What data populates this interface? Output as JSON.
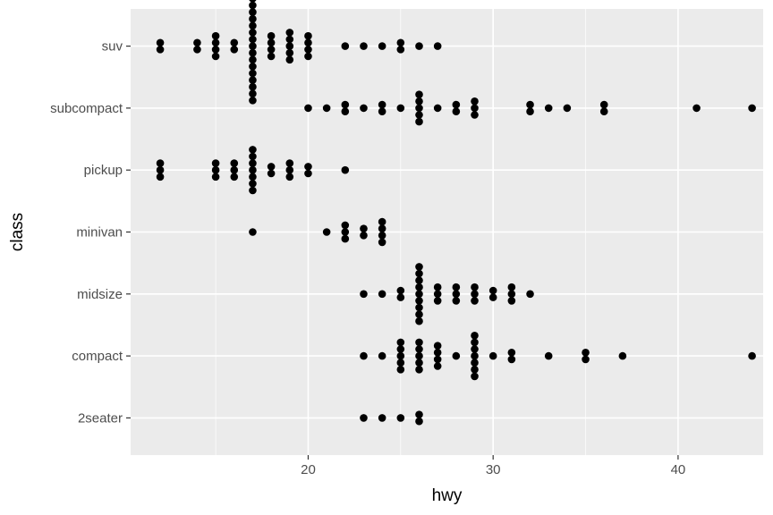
{
  "chart_data": {
    "type": "scatter",
    "title": "",
    "xlabel": "hwy",
    "ylabel": "class",
    "xlim": [
      10.4,
      44.6
    ],
    "xticks": [
      20,
      30,
      40
    ],
    "x_tick_labels": [
      "20",
      "30",
      "40"
    ],
    "categories": [
      "2seater",
      "compact",
      "midsize",
      "minivan",
      "pickup",
      "subcompact",
      "suv"
    ],
    "grid": true,
    "legend": "none",
    "colors": {
      "panel": "#ebebeb",
      "grid": "#ffffff",
      "point": "#000000",
      "tick_label": "#4d4d4d",
      "tick": "#333333"
    },
    "series": [
      {
        "category": "2seater",
        "counts": [
          [
            23,
            1
          ],
          [
            24,
            1
          ],
          [
            25,
            1
          ],
          [
            26,
            2
          ]
        ]
      },
      {
        "category": "compact",
        "counts": [
          [
            23,
            1
          ],
          [
            24,
            1
          ],
          [
            25,
            5
          ],
          [
            26,
            5
          ],
          [
            27,
            4
          ],
          [
            28,
            1
          ],
          [
            29,
            7
          ],
          [
            30,
            1
          ],
          [
            31,
            2
          ],
          [
            33,
            1
          ],
          [
            35,
            2
          ],
          [
            37,
            1
          ],
          [
            44,
            1
          ]
        ]
      },
      {
        "category": "midsize",
        "counts": [
          [
            23,
            1
          ],
          [
            24,
            1
          ],
          [
            25,
            2
          ],
          [
            26,
            9
          ],
          [
            27,
            3
          ],
          [
            28,
            3
          ],
          [
            29,
            3
          ],
          [
            30,
            2
          ],
          [
            31,
            3
          ],
          [
            32,
            1
          ]
        ]
      },
      {
        "category": "minivan",
        "counts": [
          [
            17,
            1
          ],
          [
            21,
            1
          ],
          [
            22,
            3
          ],
          [
            23,
            2
          ],
          [
            24,
            4
          ]
        ]
      },
      {
        "category": "pickup",
        "counts": [
          [
            12,
            3
          ],
          [
            15,
            3
          ],
          [
            16,
            3
          ],
          [
            17,
            7
          ],
          [
            18,
            2
          ],
          [
            19,
            3
          ],
          [
            20,
            2
          ],
          [
            22,
            1
          ]
        ]
      },
      {
        "category": "subcompact",
        "counts": [
          [
            20,
            1
          ],
          [
            21,
            1
          ],
          [
            22,
            2
          ],
          [
            23,
            1
          ],
          [
            24,
            2
          ],
          [
            25,
            1
          ],
          [
            26,
            5
          ],
          [
            27,
            1
          ],
          [
            28,
            2
          ],
          [
            29,
            3
          ],
          [
            32,
            2
          ],
          [
            33,
            1
          ],
          [
            34,
            1
          ],
          [
            36,
            2
          ],
          [
            41,
            1
          ],
          [
            44,
            1
          ]
        ]
      },
      {
        "category": "suv",
        "counts": [
          [
            12,
            2
          ],
          [
            14,
            2
          ],
          [
            15,
            4
          ],
          [
            16,
            2
          ],
          [
            17,
            17
          ],
          [
            18,
            4
          ],
          [
            19,
            5
          ],
          [
            20,
            4
          ],
          [
            22,
            1
          ],
          [
            23,
            1
          ],
          [
            24,
            1
          ],
          [
            25,
            2
          ],
          [
            26,
            1
          ],
          [
            27,
            1
          ]
        ]
      }
    ]
  }
}
